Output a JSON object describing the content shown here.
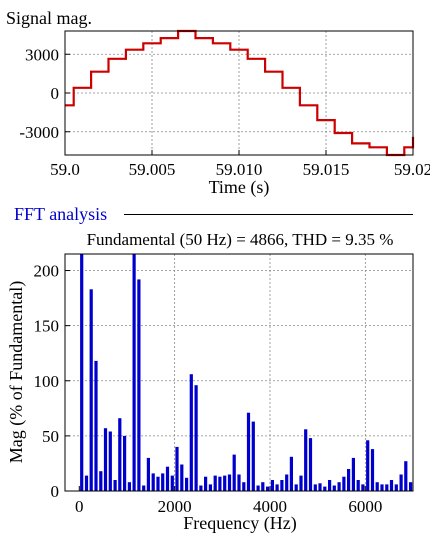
{
  "signal_panel": {
    "ylabel": "Signal mag.",
    "xlabel": "Time (s)"
  },
  "fft_section": {
    "label": "FFT analysis",
    "title": "Fundamental (50 Hz) = 4866, THD = 9.35 %",
    "xlabel": "Frequency (Hz)",
    "ylabel": "Mag (% of Fundamental)"
  },
  "colors": {
    "signal": "#cc0000",
    "spectrum": "#0000cc",
    "section_label": "#0000cc",
    "grid": "#888888"
  },
  "chart_data": [
    {
      "type": "line",
      "xlabel": "Time (s)",
      "ylabel": "Signal mag.",
      "xlim": [
        59.0,
        59.02
      ],
      "ylim": [
        -4800,
        4800
      ],
      "xticks": [
        "59.0",
        "59.005",
        "59.010",
        "59.015",
        "59.02"
      ],
      "yticks": [
        "3000",
        "0",
        "-3000"
      ],
      "grid": true,
      "step": true,
      "x": [
        59.0,
        59.0005,
        59.0015,
        59.0025,
        59.0035,
        59.0045,
        59.0055,
        59.0065,
        59.0075,
        59.0085,
        59.0095,
        59.0105,
        59.0115,
        59.0125,
        59.0135,
        59.0145,
        59.0155,
        59.0165,
        59.0175,
        59.0185,
        59.0195,
        59.02
      ],
      "values": [
        -950,
        400,
        1650,
        2650,
        3350,
        3850,
        4250,
        4800,
        4250,
        3850,
        3350,
        2650,
        1650,
        400,
        -950,
        -2100,
        -3100,
        -3900,
        -4200,
        -4800,
        -4200,
        -3400
      ]
    },
    {
      "type": "bar",
      "title": "Fundamental (50 Hz) = 4866, THD = 9.35 %",
      "xlabel": "Frequency (Hz)",
      "ylabel": "Mag (% of Fundamental)",
      "xlim": [
        -300,
        7000
      ],
      "ylim": [
        0,
        215
      ],
      "xticks": [
        "0",
        "2000",
        "4000",
        "6000"
      ],
      "yticks": [
        "0",
        "50",
        "100",
        "150",
        "200"
      ],
      "grid": true,
      "x": [
        50,
        150,
        250,
        350,
        450,
        550,
        650,
        750,
        850,
        950,
        1050,
        1150,
        1250,
        1350,
        1450,
        1550,
        1650,
        1750,
        1850,
        1950,
        2050,
        2150,
        2250,
        2350,
        2450,
        2550,
        2650,
        2750,
        2850,
        2950,
        3050,
        3150,
        3250,
        3350,
        3450,
        3550,
        3650,
        3750,
        3850,
        3950,
        4050,
        4150,
        4250,
        4350,
        4450,
        4550,
        4650,
        4750,
        4850,
        4950,
        5050,
        5150,
        5250,
        5350,
        5450,
        5550,
        5650,
        5750,
        5850,
        5950,
        6050,
        6150,
        6250,
        6350,
        6450,
        6550,
        6650,
        6750,
        6850,
        6950
      ],
      "values": [
        215,
        14,
        183,
        118,
        18,
        57,
        54,
        10,
        66,
        50,
        8,
        215,
        192,
        5,
        30,
        16,
        13,
        16,
        22,
        14,
        40,
        24,
        12,
        106,
        96,
        5,
        13,
        6,
        14,
        13,
        14,
        15,
        33,
        15,
        8,
        71,
        63,
        5,
        8,
        4,
        10,
        6,
        10,
        15,
        31,
        6,
        14,
        56,
        48,
        6,
        7,
        4,
        10,
        5,
        8,
        13,
        20,
        30,
        10,
        6,
        46,
        38,
        8,
        6,
        6,
        10,
        6,
        15,
        27,
        8
      ]
    }
  ]
}
